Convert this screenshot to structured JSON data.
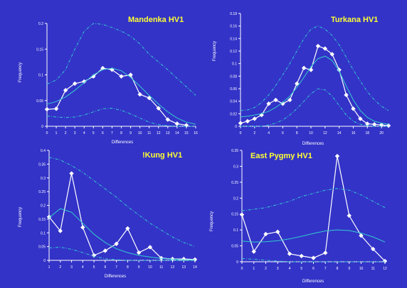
{
  "colors": {
    "background": "#3333c8",
    "title": "#ffff33",
    "observed": "#ffffff",
    "expected": "#33cccc"
  },
  "chart_data": [
    {
      "type": "line",
      "title": "Mandenka HV1",
      "xlabel": "Differences",
      "ylabel": "Frequency",
      "xlim": [
        0,
        16
      ],
      "ylim": [
        0,
        0.2
      ],
      "x_ticks": [
        "0",
        "1",
        "2",
        "3",
        "4",
        "5",
        "6",
        "7",
        "8",
        "9",
        "10",
        "11",
        "12",
        "13",
        "14",
        "15",
        "16"
      ],
      "y_ticks": [
        "0",
        "0.05",
        "0.1",
        "0.15",
        "0.2"
      ],
      "series": [
        {
          "style": "observed",
          "x": [
            0,
            1,
            2,
            3,
            4,
            5,
            6,
            7,
            8,
            9,
            10,
            11,
            12,
            13,
            14,
            15
          ],
          "y": [
            0.033,
            0.034,
            0.07,
            0.083,
            0.087,
            0.097,
            0.113,
            0.11,
            0.097,
            0.1,
            0.062,
            0.055,
            0.035,
            0.013,
            0.005,
            0.002
          ]
        },
        {
          "style": "expected",
          "x": [
            0,
            1,
            2,
            3,
            4,
            5,
            6,
            7,
            8,
            9,
            10,
            11,
            12,
            13,
            14,
            15,
            16
          ],
          "y": [
            0.043,
            0.048,
            0.057,
            0.07,
            0.085,
            0.1,
            0.11,
            0.113,
            0.108,
            0.095,
            0.078,
            0.06,
            0.043,
            0.028,
            0.016,
            0.008,
            0.004
          ]
        },
        {
          "style": "upper",
          "x": [
            0,
            1,
            2,
            3,
            4,
            5,
            6,
            7,
            8,
            9,
            10,
            11,
            12,
            13,
            14,
            15,
            16
          ],
          "y": [
            0.082,
            0.09,
            0.11,
            0.15,
            0.185,
            0.2,
            0.198,
            0.192,
            0.185,
            0.175,
            0.16,
            0.14,
            0.125,
            0.11,
            0.093,
            0.077,
            0.06
          ]
        },
        {
          "style": "lower",
          "x": [
            0,
            1,
            2,
            3,
            4,
            5,
            6,
            7,
            8,
            9,
            10,
            11,
            12,
            13,
            14,
            15,
            16
          ],
          "y": [
            0.02,
            0.018,
            0.017,
            0.018,
            0.022,
            0.028,
            0.034,
            0.035,
            0.031,
            0.024,
            0.016,
            0.008,
            0.003,
            0.001,
            0,
            0,
            0
          ]
        }
      ]
    },
    {
      "type": "line",
      "title": "Turkana HV1",
      "xlabel": "Differences",
      "ylabel": "Frequency",
      "xlim": [
        0,
        21
      ],
      "ylim": [
        0,
        0.18
      ],
      "x_ticks": [
        "0",
        "2",
        "4",
        "6",
        "8",
        "10",
        "12",
        "14",
        "16",
        "18",
        "20"
      ],
      "y_ticks": [
        "0",
        "0.02",
        "0.04",
        "0.06",
        "0.08",
        "0.1",
        "0.12",
        "0.14",
        "0.16",
        "0.18"
      ],
      "series": [
        {
          "style": "observed",
          "x": [
            0,
            1,
            2,
            3,
            4,
            5,
            6,
            7,
            8,
            9,
            10,
            11,
            12,
            13,
            14,
            15,
            16,
            17,
            18,
            19,
            20,
            21
          ],
          "y": [
            0.005,
            0.008,
            0.012,
            0.018,
            0.036,
            0.042,
            0.036,
            0.042,
            0.068,
            0.093,
            0.09,
            0.128,
            0.124,
            0.115,
            0.09,
            0.05,
            0.028,
            0.012,
            0.004,
            0.003,
            0.002,
            0.001
          ]
        },
        {
          "style": "expected",
          "x": [
            0,
            1,
            2,
            3,
            4,
            5,
            6,
            7,
            8,
            9,
            10,
            11,
            12,
            13,
            14,
            15,
            16,
            17,
            18,
            19,
            20,
            21
          ],
          "y": [
            0.015,
            0.016,
            0.018,
            0.02,
            0.024,
            0.03,
            0.038,
            0.048,
            0.062,
            0.078,
            0.095,
            0.108,
            0.112,
            0.105,
            0.088,
            0.064,
            0.042,
            0.025,
            0.014,
            0.008,
            0.005,
            0.003
          ]
        },
        {
          "style": "upper",
          "x": [
            0,
            1,
            2,
            3,
            4,
            5,
            6,
            7,
            8,
            9,
            10,
            11,
            12,
            13,
            14,
            15,
            16,
            17,
            18,
            19,
            20,
            21
          ],
          "y": [
            0.025,
            0.026,
            0.03,
            0.038,
            0.05,
            0.065,
            0.082,
            0.1,
            0.12,
            0.14,
            0.155,
            0.16,
            0.155,
            0.145,
            0.13,
            0.11,
            0.09,
            0.072,
            0.055,
            0.042,
            0.032,
            0.025
          ]
        },
        {
          "style": "lower",
          "x": [
            0,
            1,
            2,
            3,
            4,
            5,
            6,
            7,
            8,
            9,
            10,
            11,
            12,
            13,
            14,
            15,
            16,
            17,
            18,
            19,
            20,
            21
          ],
          "y": [
            0,
            0,
            0,
            0,
            0.002,
            0.005,
            0.01,
            0.018,
            0.028,
            0.04,
            0.052,
            0.06,
            0.058,
            0.048,
            0.033,
            0.018,
            0.008,
            0.003,
            0.001,
            0,
            0,
            0
          ]
        }
      ]
    },
    {
      "type": "line",
      "title": "!Kung HV1",
      "xlabel": "Differences",
      "ylabel": "Frequency",
      "xlim": [
        1,
        14
      ],
      "ylim": [
        0,
        0.4
      ],
      "x_ticks": [
        "1",
        "2",
        "3",
        "4",
        "5",
        "6",
        "7",
        "8",
        "9",
        "10",
        "11",
        "12",
        "13",
        "14"
      ],
      "y_ticks": [
        "0",
        "0.05",
        "0.1",
        "0.15",
        "0.2",
        "0.25",
        "0.3",
        "0.35",
        "0.4"
      ],
      "series": [
        {
          "style": "observed",
          "x": [
            1,
            2,
            3,
            4,
            5,
            6,
            7,
            8,
            9,
            10,
            11,
            12,
            13,
            14
          ],
          "y": [
            0.158,
            0.107,
            0.316,
            0.12,
            0.018,
            0.035,
            0.06,
            0.116,
            0.028,
            0.048,
            0.008,
            0.005,
            0.005,
            0.003
          ]
        },
        {
          "style": "expected",
          "x": [
            1,
            2,
            3,
            4,
            5,
            6,
            7,
            8,
            9,
            10,
            11,
            12,
            13,
            14
          ],
          "y": [
            0.155,
            0.188,
            0.175,
            0.135,
            0.095,
            0.065,
            0.042,
            0.028,
            0.018,
            0.012,
            0.007,
            0.004,
            0.002,
            0.001
          ]
        },
        {
          "style": "upper",
          "x": [
            1,
            2,
            3,
            4,
            5,
            6,
            7,
            8,
            9,
            10,
            11,
            12,
            13,
            14
          ],
          "y": [
            0.375,
            0.365,
            0.345,
            0.32,
            0.29,
            0.26,
            0.23,
            0.195,
            0.165,
            0.135,
            0.11,
            0.085,
            0.065,
            0.05
          ]
        },
        {
          "style": "lower",
          "x": [
            1,
            2,
            3,
            4,
            5,
            6,
            7,
            8,
            9,
            10,
            11,
            12,
            13,
            14
          ],
          "y": [
            0.045,
            0.048,
            0.04,
            0.028,
            0.015,
            0.006,
            0.002,
            0,
            0,
            0,
            0,
            0,
            0,
            0
          ]
        }
      ]
    },
    {
      "type": "line",
      "title": "East Pygmy HV1",
      "xlabel": "Differences",
      "ylabel": "Frequency",
      "xlim": [
        0,
        12
      ],
      "ylim": [
        0,
        0.35
      ],
      "x_ticks": [
        "0",
        "1",
        "2",
        "3",
        "4",
        "5",
        "6",
        "7",
        "8",
        "9",
        "10",
        "11",
        "12"
      ],
      "y_ticks": [
        "0",
        "0.05",
        "0.1",
        "0.15",
        "0.2",
        "0.25",
        "0.3",
        "0.35"
      ],
      "series": [
        {
          "style": "observed",
          "x": [
            0,
            1,
            2,
            3,
            4,
            5,
            6,
            7,
            8,
            9,
            10,
            11,
            12
          ],
          "y": [
            0.148,
            0.032,
            0.087,
            0.094,
            0.025,
            0.018,
            0.012,
            0.028,
            0.332,
            0.145,
            0.082,
            0.04,
            0.002
          ]
        },
        {
          "style": "expected",
          "x": [
            0,
            1,
            2,
            3,
            4,
            5,
            6,
            7,
            8,
            9,
            10,
            11,
            12
          ],
          "y": [
            0.065,
            0.062,
            0.063,
            0.066,
            0.072,
            0.08,
            0.089,
            0.097,
            0.1,
            0.098,
            0.09,
            0.078,
            0.062
          ]
        },
        {
          "style": "upper",
          "x": [
            0,
            1,
            2,
            3,
            4,
            5,
            6,
            7,
            8,
            9,
            10,
            11,
            12
          ],
          "y": [
            0.16,
            0.165,
            0.17,
            0.18,
            0.19,
            0.205,
            0.215,
            0.225,
            0.23,
            0.225,
            0.21,
            0.19,
            0.17
          ]
        },
        {
          "style": "lower",
          "x": [
            0,
            1,
            2,
            3,
            4,
            5,
            6,
            7,
            8,
            9,
            10,
            11,
            12
          ],
          "y": [
            0.01,
            0.008,
            0.005,
            0.002,
            0,
            0,
            0,
            0,
            0,
            0,
            0,
            0,
            0
          ]
        }
      ]
    }
  ]
}
